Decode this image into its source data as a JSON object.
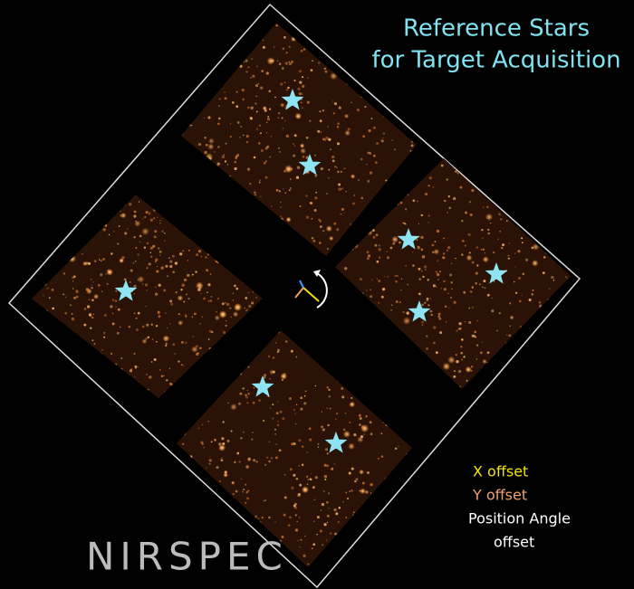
{
  "title": {
    "line1": "Reference Stars",
    "line2": "for Target Acquisition"
  },
  "legend": {
    "x_offset": "X offset",
    "y_offset": "Y offset",
    "pa_line1": "Position Angle",
    "pa_line2": "offset"
  },
  "instrument": "NIRSPEC"
}
